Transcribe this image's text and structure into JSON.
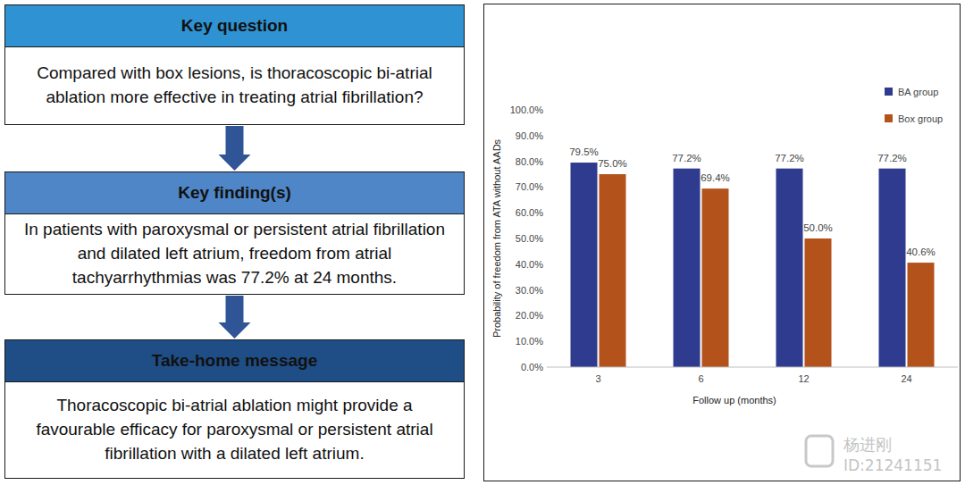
{
  "flowchart": {
    "steps": [
      {
        "header": "Key question",
        "text": "Compared with box lesions, is thoracoscopic bi-atrial ablation more effective in treating atrial fibrillation?"
      },
      {
        "header": "Key finding(s)",
        "text": "In patients with paroxysmal or persistent atrial fibrillation and dilated left atrium, freedom from atrial tachyarrhythmias was 77.2% at 24 months."
      },
      {
        "header": "Take-home message",
        "text": "Thoracoscopic bi-atrial ablation might provide a favourable efficacy for paroxysmal or persistent atrial fibrillation with a dilated left atrium."
      }
    ]
  },
  "chart_data": {
    "type": "bar",
    "x_label": "Follow up (months)",
    "y_label": "Probability of freedom from ATA without AADs",
    "categories": [
      "3",
      "6",
      "12",
      "24"
    ],
    "series": [
      {
        "name": "BA group",
        "color": "#2e3b8e",
        "values": [
          79.5,
          77.2,
          77.2,
          77.2
        ],
        "value_labels": [
          "79.5%",
          "77.2%",
          "77.2%",
          "77.2%"
        ]
      },
      {
        "name": "Box group",
        "color": "#b4521c",
        "values": [
          75.0,
          69.4,
          50.0,
          40.6
        ],
        "value_labels": [
          "75.0%",
          "69.4%",
          "50.0%",
          "40.6%"
        ]
      }
    ],
    "ylim": [
      0,
      100
    ],
    "yticks": [
      {
        "value": 0,
        "label": "0.0%"
      },
      {
        "value": 10,
        "label": "10.0%"
      },
      {
        "value": 20,
        "label": "20.0%"
      },
      {
        "value": 30,
        "label": "30.0%"
      },
      {
        "value": 40,
        "label": "40.0%"
      },
      {
        "value": 50,
        "label": "50.0%"
      },
      {
        "value": 60,
        "label": "60.0%"
      },
      {
        "value": 70,
        "label": "70.0%"
      },
      {
        "value": 80,
        "label": "80.0%"
      },
      {
        "value": 90,
        "label": "90.0%"
      },
      {
        "value": 100,
        "label": "100.0%"
      }
    ],
    "grid": false,
    "legend": "upper right",
    "data_labels": true
  },
  "watermark": {
    "name": "杨进刚",
    "id": "ID:21241151"
  }
}
